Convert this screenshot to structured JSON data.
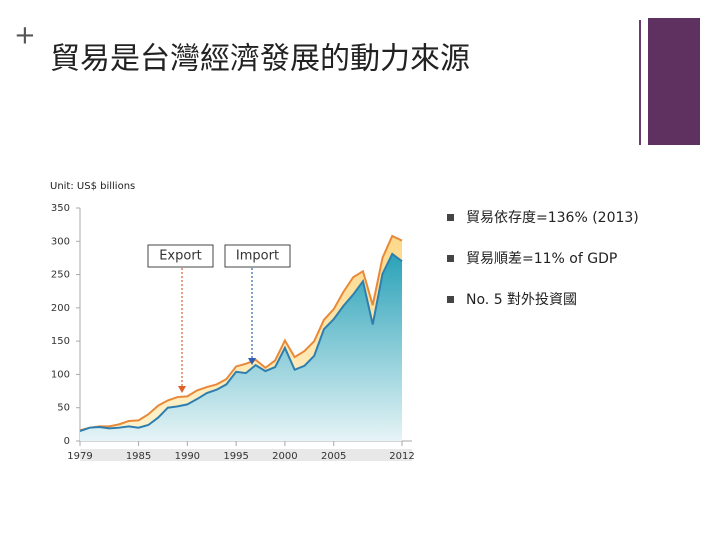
{
  "slide": {
    "title": "貿易是台灣經濟發展的動力來源",
    "bullets": [
      "貿易依存度=136% (2013)",
      "貿易順差=11% of GDP",
      "No. 5  對外投資國"
    ]
  },
  "chart_data": {
    "type": "area",
    "subtitle": "Unit: US$ billions",
    "x": [
      1979,
      1980,
      1981,
      1982,
      1983,
      1984,
      1985,
      1986,
      1987,
      1988,
      1989,
      1990,
      1991,
      1992,
      1993,
      1994,
      1995,
      1996,
      1997,
      1998,
      1999,
      2000,
      2001,
      2002,
      2003,
      2004,
      2005,
      2006,
      2007,
      2008,
      2009,
      2010,
      2011,
      2012
    ],
    "series": [
      {
        "name": "Export",
        "color": "#e8893a",
        "values": [
          16,
          20,
          22,
          22,
          25,
          30,
          31,
          40,
          53,
          61,
          66,
          67,
          76,
          81,
          85,
          93,
          112,
          116,
          122,
          110,
          121,
          151,
          126,
          135,
          150,
          182,
          198,
          224,
          246,
          255,
          204,
          275,
          308,
          301
        ]
      },
      {
        "name": "Import",
        "color": "#2e7fb0",
        "values": [
          15,
          20,
          21,
          19,
          20,
          22,
          20,
          24,
          35,
          50,
          52,
          55,
          63,
          72,
          77,
          85,
          104,
          102,
          114,
          105,
          111,
          140,
          107,
          113,
          128,
          168,
          183,
          203,
          220,
          240,
          175,
          251,
          281,
          270
        ]
      }
    ],
    "xlim": [
      1979,
      2012
    ],
    "xticks": [
      1979,
      1985,
      1990,
      1995,
      2000,
      2005,
      2012
    ],
    "ylim": [
      0,
      350
    ],
    "yticks": [
      0,
      50,
      100,
      150,
      200,
      250,
      300,
      350
    ]
  }
}
